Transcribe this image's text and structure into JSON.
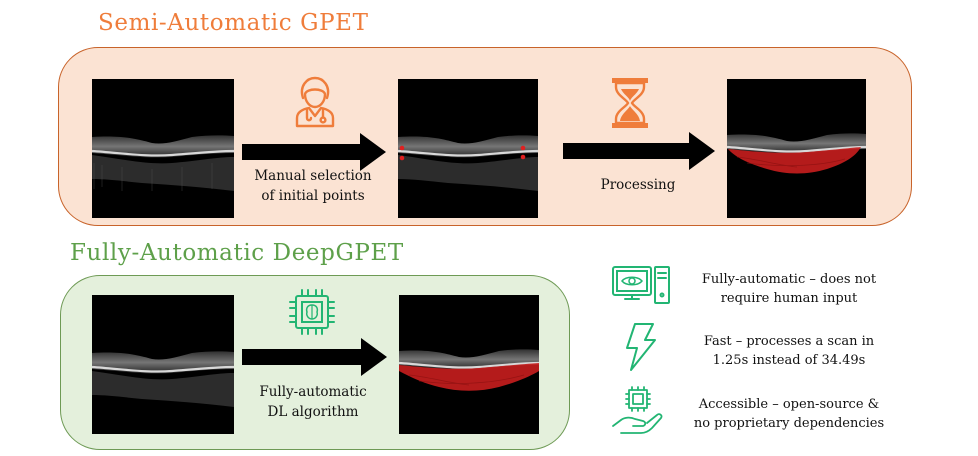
{
  "semi": {
    "title": "Semi-Automatic GPET",
    "arrow1_label": [
      "Manual selection",
      "of initial points"
    ],
    "arrow2_label": "Processing"
  },
  "fully": {
    "title": "Fully-Automatic DeepGPET",
    "arrow_label": [
      "Fully-automatic",
      "DL algorithm"
    ]
  },
  "features": [
    {
      "icon": "computer-eye-icon",
      "lines": [
        "Fully-automatic  – does not",
        "require human input"
      ]
    },
    {
      "icon": "lightning-icon",
      "lines": [
        "Fast – processes  a scan in",
        "1.25s instead of 34.49s"
      ]
    },
    {
      "icon": "hand-chip-icon",
      "lines": [
        "Accessible – open-source &",
        "no proprietary dependencies"
      ]
    }
  ],
  "colors": {
    "orange": "#ef7d3b",
    "green": "#5ea04a",
    "icon_green": "#22b573",
    "segmentation_red": "#c81e1e"
  }
}
